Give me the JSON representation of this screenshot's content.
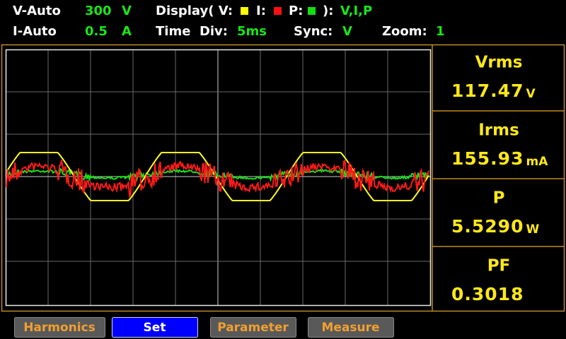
{
  "header": {
    "voltage_range": {
      "label": "V-Auto",
      "value": "300",
      "unit": "V"
    },
    "current_range": {
      "label": "I-Auto",
      "value": "0.5",
      "unit": "A"
    },
    "display": {
      "label": "Display( V:",
      "i_label": "I:",
      "p_label": "P:",
      "close": "):",
      "value": "V,I,P"
    },
    "time_div": {
      "label": "Time  Div:",
      "value": "5ms"
    },
    "sync": {
      "label": "Sync:",
      "value": "V"
    },
    "zoom": {
      "label": "Zoom:",
      "value": "1"
    }
  },
  "measurements": [
    {
      "label": "Vrms",
      "value": "117.47",
      "unit": "V"
    },
    {
      "label": "Irms",
      "value": "155.93",
      "unit": "mA"
    },
    {
      "label": "P",
      "value": "5.5290",
      "unit": "W"
    },
    {
      "label": "PF",
      "value": "0.3018"
    }
  ],
  "buttons": [
    "Harmonics",
    "Set",
    "Parameter",
    "Measure"
  ]
}
